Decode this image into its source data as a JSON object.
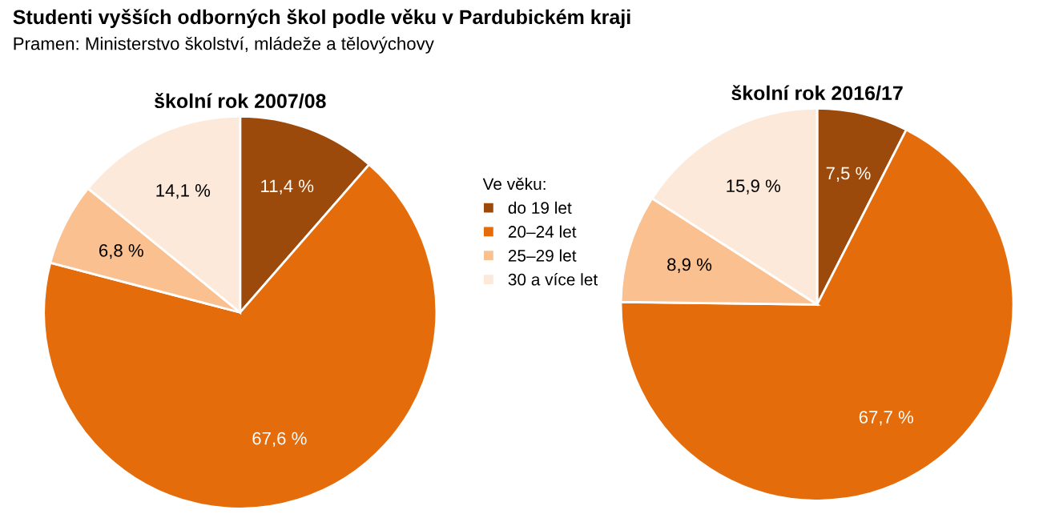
{
  "chart_data": [
    {
      "type": "pie",
      "title": "školní rok 2007/08",
      "annotations": [
        "Studenti vyšších odborných škol podle věku v Pardubickém kraji",
        "Pramen: Ministerstvo školství, mládeže a tělovýchovy"
      ],
      "legend_title": "Ve věku:",
      "legend": "right",
      "categories": [
        "do 19 let",
        "20–24 let",
        "25–29 let",
        "30 a více let"
      ],
      "values": [
        11.4,
        67.6,
        6.8,
        14.1
      ],
      "value_labels": [
        "11,4 %",
        "67,6 %",
        "6,8 %",
        "14,1 %"
      ],
      "colors": [
        "#9c4a0b",
        "#e46c0a",
        "#fac090",
        "#fde9d9"
      ]
    },
    {
      "type": "pie",
      "title": "školní rok 2016/17",
      "categories": [
        null,
        null,
        null,
        null
      ],
      "values": [
        7.5,
        67.7,
        8.9,
        15.9
      ],
      "value_labels": [
        "7,5 %",
        "67,7 %",
        "8,9 %",
        "15,9 %"
      ],
      "colors": [
        "#9c4a0b",
        "#e46c0a",
        "#fac090",
        "#fde9d9"
      ]
    }
  ]
}
